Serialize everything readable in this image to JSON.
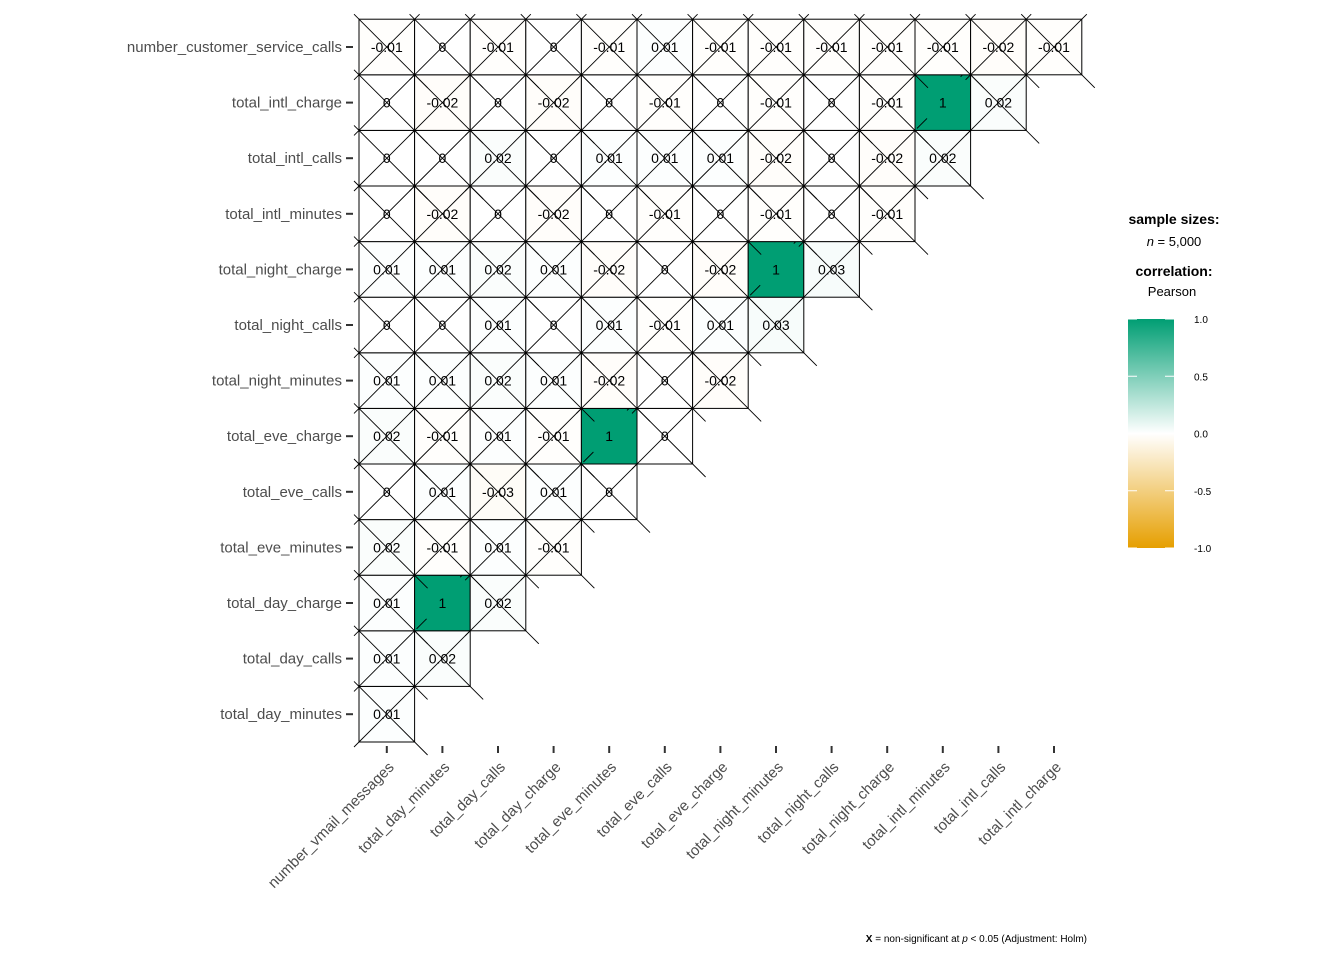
{
  "chart_data": {
    "type": "heatmap",
    "variant": "lower-triangle correlation matrix (ggcorrmat)",
    "x_variables": [
      "number_vmail_messages",
      "total_day_minutes",
      "total_day_calls",
      "total_day_charge",
      "total_eve_minutes",
      "total_eve_calls",
      "total_eve_charge",
      "total_night_minutes",
      "total_night_calls",
      "total_night_charge",
      "total_intl_minutes",
      "total_intl_calls",
      "total_intl_charge"
    ],
    "y_variables": [
      "total_day_minutes",
      "total_day_calls",
      "total_day_charge",
      "total_eve_minutes",
      "total_eve_calls",
      "total_eve_charge",
      "total_night_minutes",
      "total_night_calls",
      "total_night_charge",
      "total_intl_minutes",
      "total_intl_calls",
      "total_intl_charge",
      "number_customer_service_calls"
    ],
    "rows": [
      {
        "y": "total_day_minutes",
        "values": [
          {
            "v": 0.01,
            "l": "0.01"
          }
        ]
      },
      {
        "y": "total_day_calls",
        "values": [
          {
            "v": 0.01,
            "l": "0.01"
          },
          {
            "v": 0.02,
            "l": "0.02"
          }
        ]
      },
      {
        "y": "total_day_charge",
        "values": [
          {
            "v": 0.01,
            "l": "0.01"
          },
          {
            "v": 1.0,
            "l": "1"
          },
          {
            "v": 0.02,
            "l": "0.02"
          }
        ]
      },
      {
        "y": "total_eve_minutes",
        "values": [
          {
            "v": 0.02,
            "l": "0.02"
          },
          {
            "v": -0.01,
            "l": "-0.01"
          },
          {
            "v": 0.01,
            "l": "0.01"
          },
          {
            "v": -0.01,
            "l": "-0.01"
          }
        ]
      },
      {
        "y": "total_eve_calls",
        "values": [
          {
            "v": 0.0,
            "l": "0"
          },
          {
            "v": 0.01,
            "l": "0.01"
          },
          {
            "v": -0.03,
            "l": "-0.03"
          },
          {
            "v": 0.01,
            "l": "0.01"
          },
          {
            "v": 0.0,
            "l": "0"
          }
        ]
      },
      {
        "y": "total_eve_charge",
        "values": [
          {
            "v": 0.02,
            "l": "0.02"
          },
          {
            "v": -0.01,
            "l": "-0.01"
          },
          {
            "v": 0.01,
            "l": "0.01"
          },
          {
            "v": -0.01,
            "l": "-0.01"
          },
          {
            "v": 1.0,
            "l": "1"
          },
          {
            "v": 0.0,
            "l": "0"
          }
        ]
      },
      {
        "y": "total_night_minutes",
        "values": [
          {
            "v": 0.01,
            "l": "0.01"
          },
          {
            "v": 0.01,
            "l": "0.01"
          },
          {
            "v": 0.02,
            "l": "0.02"
          },
          {
            "v": 0.01,
            "l": "0.01"
          },
          {
            "v": -0.02,
            "l": "-0.02"
          },
          {
            "v": 0.0,
            "l": "0"
          },
          {
            "v": -0.02,
            "l": "-0.02"
          }
        ]
      },
      {
        "y": "total_night_calls",
        "values": [
          {
            "v": 0.0,
            "l": "0"
          },
          {
            "v": 0.0,
            "l": "0"
          },
          {
            "v": 0.01,
            "l": "0.01"
          },
          {
            "v": 0.0,
            "l": "0"
          },
          {
            "v": 0.01,
            "l": "0.01"
          },
          {
            "v": -0.01,
            "l": "-0.01"
          },
          {
            "v": 0.01,
            "l": "0.01"
          },
          {
            "v": 0.03,
            "l": "0.03"
          }
        ]
      },
      {
        "y": "total_night_charge",
        "values": [
          {
            "v": 0.01,
            "l": "0.01"
          },
          {
            "v": 0.01,
            "l": "0.01"
          },
          {
            "v": 0.02,
            "l": "0.02"
          },
          {
            "v": 0.01,
            "l": "0.01"
          },
          {
            "v": -0.02,
            "l": "-0.02"
          },
          {
            "v": 0.0,
            "l": "0"
          },
          {
            "v": -0.02,
            "l": "-0.02"
          },
          {
            "v": 1.0,
            "l": "1"
          },
          {
            "v": 0.03,
            "l": "0.03"
          }
        ]
      },
      {
        "y": "total_intl_minutes",
        "values": [
          {
            "v": 0.0,
            "l": "0"
          },
          {
            "v": -0.02,
            "l": "-0.02"
          },
          {
            "v": 0.0,
            "l": "0"
          },
          {
            "v": -0.02,
            "l": "-0.02"
          },
          {
            "v": 0.0,
            "l": "0"
          },
          {
            "v": -0.01,
            "l": "-0.01"
          },
          {
            "v": 0.0,
            "l": "0"
          },
          {
            "v": -0.01,
            "l": "-0.01"
          },
          {
            "v": 0.0,
            "l": "0"
          },
          {
            "v": -0.01,
            "l": "-0.01"
          }
        ]
      },
      {
        "y": "total_intl_calls",
        "values": [
          {
            "v": 0.0,
            "l": "0"
          },
          {
            "v": 0.0,
            "l": "0"
          },
          {
            "v": 0.02,
            "l": "0.02"
          },
          {
            "v": 0.0,
            "l": "0"
          },
          {
            "v": 0.01,
            "l": "0.01"
          },
          {
            "v": 0.01,
            "l": "0.01"
          },
          {
            "v": 0.01,
            "l": "0.01"
          },
          {
            "v": -0.02,
            "l": "-0.02"
          },
          {
            "v": 0.0,
            "l": "0"
          },
          {
            "v": -0.02,
            "l": "-0.02"
          },
          {
            "v": 0.02,
            "l": "0.02"
          }
        ]
      },
      {
        "y": "total_intl_charge",
        "values": [
          {
            "v": 0.0,
            "l": "0"
          },
          {
            "v": -0.02,
            "l": "-0.02"
          },
          {
            "v": 0.0,
            "l": "0"
          },
          {
            "v": -0.02,
            "l": "-0.02"
          },
          {
            "v": 0.0,
            "l": "0"
          },
          {
            "v": -0.01,
            "l": "-0.01"
          },
          {
            "v": 0.0,
            "l": "0"
          },
          {
            "v": -0.01,
            "l": "-0.01"
          },
          {
            "v": 0.0,
            "l": "0"
          },
          {
            "v": -0.01,
            "l": "-0.01"
          },
          {
            "v": 1.0,
            "l": "1"
          },
          {
            "v": 0.02,
            "l": "0.02"
          }
        ]
      },
      {
        "y": "number_customer_service_calls",
        "values": [
          {
            "v": -0.01,
            "l": "-0.01"
          },
          {
            "v": 0.0,
            "l": "0"
          },
          {
            "v": -0.01,
            "l": "-0.01"
          },
          {
            "v": 0.0,
            "l": "0"
          },
          {
            "v": -0.01,
            "l": "-0.01"
          },
          {
            "v": 0.01,
            "l": "0.01"
          },
          {
            "v": -0.01,
            "l": "-0.01"
          },
          {
            "v": -0.01,
            "l": "-0.01"
          },
          {
            "v": -0.01,
            "l": "-0.01"
          },
          {
            "v": -0.01,
            "l": "-0.01"
          },
          {
            "v": -0.01,
            "l": "-0.01"
          },
          {
            "v": -0.02,
            "l": "-0.02"
          },
          {
            "v": -0.01,
            "l": "-0.01"
          }
        ]
      }
    ],
    "nonsignificant_marker": "X",
    "legend": {
      "sample_title": "sample sizes:",
      "sample_value_italic": "n",
      "sample_value_rest": " = 5,000",
      "correlation_title": "correlation:",
      "correlation_method": "Pearson",
      "scale_ticks": [
        "1.0",
        "0.5",
        "0.0",
        "-0.5",
        "-1.0"
      ],
      "scale_range": [
        -1.0,
        1.0
      ],
      "placement": "right"
    },
    "colors": {
      "low": "#E69F00",
      "mid": "#FFFFFF",
      "high": "#009E73"
    },
    "caption": {
      "bold_part": "X",
      "part1": " = non-significant at ",
      "italic_part": "p",
      "part2": " < 0.05 (Adjustment: Holm)"
    },
    "grid": false
  }
}
